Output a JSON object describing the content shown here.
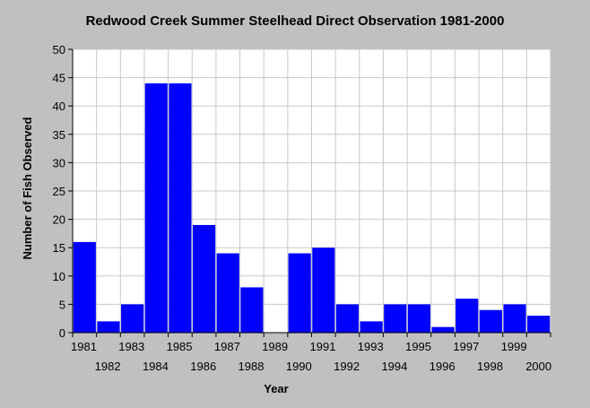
{
  "chart_data": {
    "type": "bar",
    "title": "Redwood Creek Summer Steelhead Direct Observation 1981-2000",
    "xlabel": "Year",
    "ylabel": "Number of Fish Observed",
    "categories": [
      "1981",
      "1982",
      "1983",
      "1984",
      "1985",
      "1986",
      "1987",
      "1988",
      "1989",
      "1990",
      "1991",
      "1992",
      "1993",
      "1994",
      "1995",
      "1996",
      "1997",
      "1998",
      "1999",
      "2000"
    ],
    "values": [
      16,
      2,
      5,
      44,
      44,
      19,
      14,
      8,
      0,
      14,
      15,
      5,
      2,
      5,
      5,
      1,
      6,
      4,
      5,
      3
    ],
    "ylim": [
      0,
      50
    ],
    "yticks": [
      0,
      5,
      10,
      15,
      20,
      25,
      30,
      35,
      40,
      45,
      50
    ],
    "grid": true,
    "colors": {
      "bar": "#0000ff",
      "plot_background": "#ffffff",
      "background": "#c0c0c0",
      "grid": "#c8c8c8"
    }
  }
}
